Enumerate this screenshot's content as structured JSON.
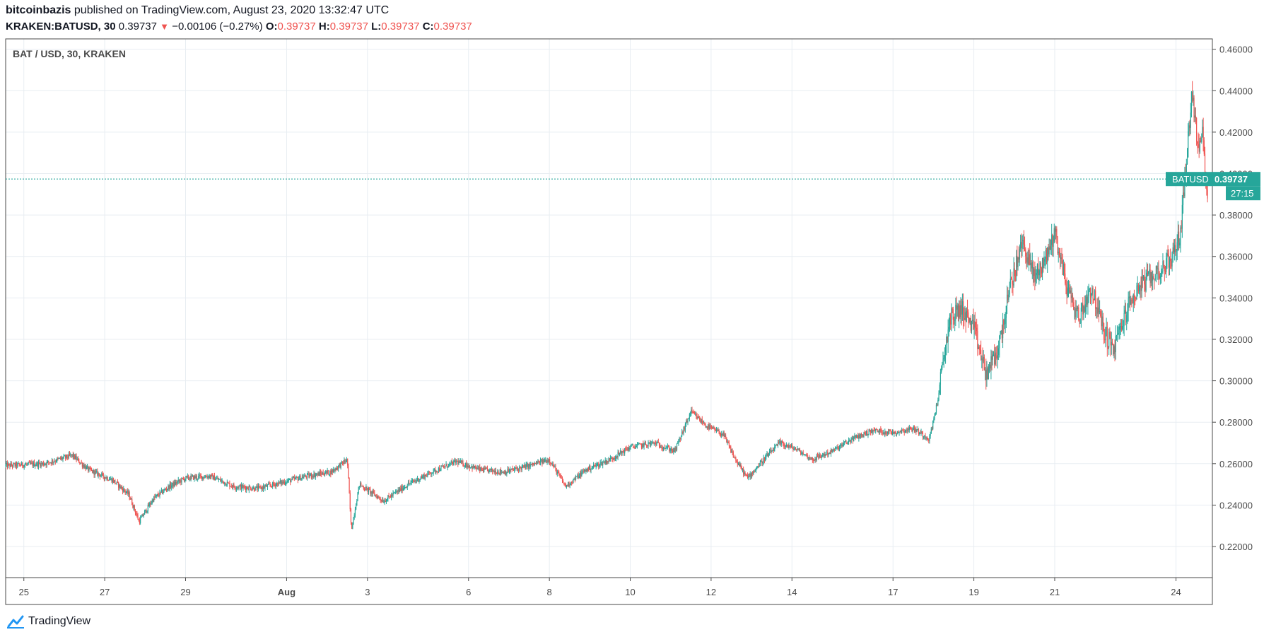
{
  "header": {
    "author": "bitcoinbazis",
    "published_text": " published on TradingView.com, August 23, 2020 13:32:47 UTC",
    "symbol": "KRAKEN:BATUSD, 30",
    "last": "0.39737",
    "change": "−0.00106 (−0.27%)",
    "o_label": "O:",
    "o_val": "0.39737",
    "h_label": "H:",
    "h_val": "0.39737",
    "l_label": "L:",
    "l_val": "0.39737",
    "c_label": "C:",
    "c_val": "0.39737"
  },
  "pane": {
    "legend": "BAT / USD, 30, KRAKEN"
  },
  "price_tag": {
    "symbol": "BATUSD",
    "value": "0.39737",
    "countdown": "27:15"
  },
  "footer": {
    "brand": "TradingView"
  },
  "colors": {
    "up": "#26a69a",
    "down": "#ef5350",
    "grid": "#e8edf2",
    "axis_text": "#4a4a4a",
    "tag_bg": "#26a69a"
  },
  "chart_data": {
    "type": "candlestick",
    "title": "BAT / USD, 30, KRAKEN",
    "ylim": [
      0.205,
      0.465
    ],
    "y_ticks": [
      "0.46000",
      "0.44000",
      "0.42000",
      "0.40000",
      "0.38000",
      "0.36000",
      "0.34000",
      "0.32000",
      "0.30000",
      "0.28000",
      "0.26000",
      "0.24000",
      "0.22000"
    ],
    "x_ticks": [
      {
        "label": "25",
        "day": 25
      },
      {
        "label": "27",
        "day": 27
      },
      {
        "label": "29",
        "day": 29
      },
      {
        "label": "Aug",
        "day": 31.5
      },
      {
        "label": "3",
        "day": 33.5
      },
      {
        "label": "6",
        "day": 36
      },
      {
        "label": "8",
        "day": 38
      },
      {
        "label": "10",
        "day": 40
      },
      {
        "label": "12",
        "day": 42
      },
      {
        "label": "14",
        "day": 44
      },
      {
        "label": "17",
        "day": 46.5
      },
      {
        "label": "19",
        "day": 48.5
      },
      {
        "label": "21",
        "day": 50.5
      },
      {
        "label": "24",
        "day": 53.5
      }
    ],
    "x_day_range": [
      24.55,
      54.4
    ],
    "last_price": 0.39737,
    "grid": true,
    "price_path": [
      [
        24.55,
        0.259
      ],
      [
        25.5,
        0.26
      ],
      [
        26.2,
        0.264
      ],
      [
        26.6,
        0.257
      ],
      [
        27.2,
        0.252
      ],
      [
        27.6,
        0.245
      ],
      [
        27.85,
        0.232
      ],
      [
        28.2,
        0.243
      ],
      [
        28.6,
        0.249
      ],
      [
        29.0,
        0.253
      ],
      [
        29.6,
        0.254
      ],
      [
        30.2,
        0.249
      ],
      [
        30.8,
        0.248
      ],
      [
        31.4,
        0.251
      ],
      [
        32.0,
        0.254
      ],
      [
        32.6,
        0.256
      ],
      [
        33.0,
        0.262
      ],
      [
        33.1,
        0.228
      ],
      [
        33.3,
        0.25
      ],
      [
        33.9,
        0.242
      ],
      [
        34.5,
        0.25
      ],
      [
        35.1,
        0.256
      ],
      [
        35.7,
        0.261
      ],
      [
        36.3,
        0.257
      ],
      [
        36.9,
        0.256
      ],
      [
        37.5,
        0.259
      ],
      [
        38.0,
        0.262
      ],
      [
        38.4,
        0.249
      ],
      [
        38.9,
        0.257
      ],
      [
        39.5,
        0.262
      ],
      [
        40.0,
        0.268
      ],
      [
        40.6,
        0.27
      ],
      [
        41.1,
        0.266
      ],
      [
        41.5,
        0.285
      ],
      [
        41.9,
        0.278
      ],
      [
        42.3,
        0.274
      ],
      [
        42.6,
        0.262
      ],
      [
        42.9,
        0.253
      ],
      [
        43.3,
        0.262
      ],
      [
        43.7,
        0.27
      ],
      [
        44.1,
        0.267
      ],
      [
        44.5,
        0.262
      ],
      [
        45.0,
        0.266
      ],
      [
        45.5,
        0.272
      ],
      [
        46.0,
        0.276
      ],
      [
        46.5,
        0.275
      ],
      [
        47.0,
        0.277
      ],
      [
        47.4,
        0.272
      ],
      [
        47.6,
        0.29
      ],
      [
        47.9,
        0.33
      ],
      [
        48.2,
        0.335
      ],
      [
        48.5,
        0.325
      ],
      [
        48.8,
        0.303
      ],
      [
        49.1,
        0.315
      ],
      [
        49.4,
        0.345
      ],
      [
        49.7,
        0.367
      ],
      [
        50.0,
        0.35
      ],
      [
        50.3,
        0.36
      ],
      [
        50.5,
        0.372
      ],
      [
        50.8,
        0.345
      ],
      [
        51.1,
        0.33
      ],
      [
        51.4,
        0.345
      ],
      [
        51.7,
        0.325
      ],
      [
        51.95,
        0.315
      ],
      [
        52.3,
        0.335
      ],
      [
        52.6,
        0.346
      ],
      [
        52.9,
        0.35
      ],
      [
        53.2,
        0.355
      ],
      [
        53.4,
        0.36
      ],
      [
        53.6,
        0.37
      ],
      [
        53.75,
        0.405
      ],
      [
        53.9,
        0.44
      ],
      [
        54.05,
        0.41
      ],
      [
        54.15,
        0.42
      ],
      [
        54.3,
        0.385
      ]
    ]
  }
}
